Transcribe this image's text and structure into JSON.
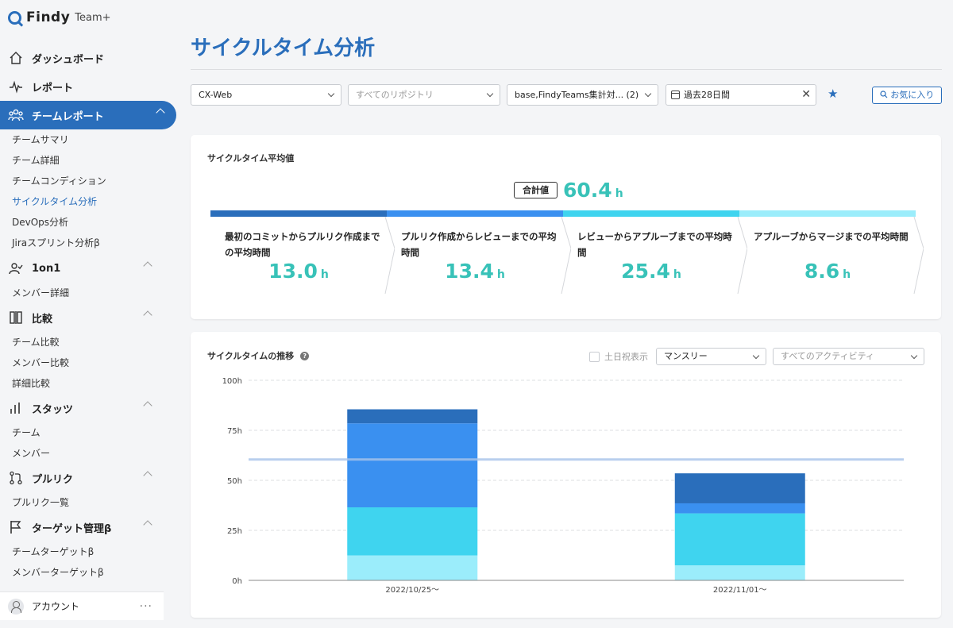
{
  "brand": {
    "name": "Findy",
    "product": "Team+"
  },
  "sidebar": {
    "dashboard": "ダッシュボード",
    "report": "レポート",
    "team_report": "チームレポート",
    "team_report_items": [
      "チームサマリ",
      "チーム詳細",
      "チームコンディション",
      "サイクルタイム分析",
      "DevOps分析",
      "Jiraスプリント分析β"
    ],
    "one_on_one": "1on1",
    "one_on_one_items": [
      "メンバー詳細"
    ],
    "compare": "比較",
    "compare_items": [
      "チーム比較",
      "メンバー比較",
      "詳細比較"
    ],
    "stats": "スタッツ",
    "stats_items": [
      "チーム",
      "メンバー"
    ],
    "pullreq": "プルリク",
    "pullreq_items": [
      "プルリク一覧"
    ],
    "target": "ターゲット管理β",
    "target_items": [
      "チームターゲットβ",
      "メンバーターゲットβ"
    ],
    "account": "アカウント",
    "account_more": "···"
  },
  "page": {
    "title": "サイクルタイム分析"
  },
  "filters": {
    "team": "CX-Web",
    "repository_placeholder": "すべてのリポジトリ",
    "branch": "base,FindyTeams集計対... (2)",
    "period": "過去28日間",
    "clear": "✕",
    "favorite_star": "★",
    "favorite_button": "お気に入り"
  },
  "summary": {
    "title": "サイクルタイム平均値",
    "total_label": "合計値",
    "total_value": "60.4",
    "unit": "h",
    "steps": [
      {
        "label": "最初のコミットからプルリク作成までの平均時間",
        "value": "13.0",
        "color": "#2a6ebb"
      },
      {
        "label": "プルリク作成からレビューまでの平均時間",
        "value": "13.4",
        "color": "#3a90f0"
      },
      {
        "label": "レビューからアプルーブまでの平均時間",
        "value": "25.4",
        "color": "#3fd4ef"
      },
      {
        "label": "アプルーブからマージまでの平均時間",
        "value": "8.6",
        "color": "#9bedfb"
      }
    ]
  },
  "trend": {
    "title": "サイクルタイムの推移",
    "help": "?",
    "holiday_label": "土日祝表示",
    "interval": "マンスリー",
    "activity_placeholder": "すべてのアクティビティ"
  },
  "chart_data": {
    "type": "bar",
    "stacked": true,
    "categories": [
      "2022/10/25〜",
      "2022/11/01〜"
    ],
    "series": [
      {
        "values": [
          12.5,
          7.5
        ],
        "color": "#9bedfb"
      },
      {
        "values": [
          24.0,
          26.0
        ],
        "color": "#3fd4ef"
      },
      {
        "values": [
          42.0,
          5.0
        ],
        "color": "#3a90f0"
      },
      {
        "values": [
          7.0,
          15.0
        ],
        "color": "#2a6ebb"
      }
    ],
    "average_line": 60.4,
    "y_ticks": [
      "0h",
      "25h",
      "50h",
      "75h",
      "100h"
    ],
    "ylim": [
      0,
      100
    ],
    "grid": true
  }
}
